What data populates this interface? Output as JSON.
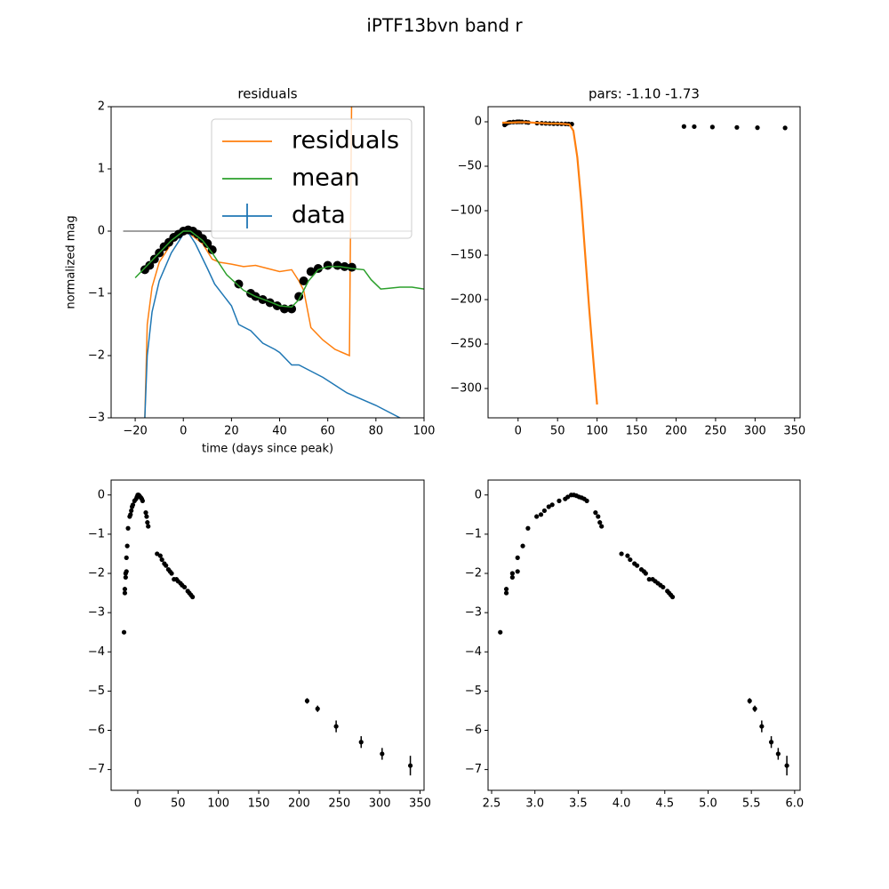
{
  "title": "iPTF13bvn band r",
  "chart_data": [
    {
      "type": "line",
      "title": "residuals",
      "x_label": "time (days since peak)",
      "y_label": "normalized mag",
      "xlim": [
        -30,
        100
      ],
      "ylim": [
        -3,
        2
      ],
      "xticks": [
        {
          "value": -20,
          "label": "−20"
        },
        0,
        20,
        40,
        60,
        80,
        100
      ],
      "yticks": [
        {
          "value": -3,
          "label": "−3"
        },
        {
          "value": -2,
          "label": "−2"
        },
        {
          "value": -1,
          "label": "−1"
        },
        0,
        1,
        2
      ],
      "legend": "upper right",
      "series": [
        {
          "style": "line",
          "color": "#808080",
          "x": [
            -25,
            95
          ],
          "values": [
            0,
            0
          ]
        },
        {
          "name": "residuals",
          "style": "line",
          "color": "#ff7f0e",
          "x": [
            -16,
            -15,
            -13,
            -10,
            -5,
            0,
            3,
            8,
            12,
            15,
            20,
            25,
            30,
            35,
            40,
            45,
            48,
            50,
            53,
            58,
            63,
            66,
            69,
            70
          ],
          "values": [
            -3.0,
            -1.5,
            -0.9,
            -0.5,
            -0.2,
            0,
            -0.05,
            -0.2,
            -0.45,
            -0.5,
            -0.53,
            -0.57,
            -0.55,
            -0.6,
            -0.65,
            -0.62,
            -0.8,
            -0.95,
            -1.55,
            -1.75,
            -1.9,
            -1.95,
            -2.0,
            2.5
          ]
        },
        {
          "name": "data",
          "style": "errorbar",
          "color": "#1f77b4",
          "x": [
            -16,
            -15,
            -13,
            -10,
            -5,
            0,
            2,
            5,
            10,
            13,
            20,
            23,
            28,
            33,
            38,
            40,
            45,
            48,
            53,
            58,
            64,
            68,
            80,
            90,
            100
          ],
          "values": [
            -3.0,
            -2.0,
            -1.3,
            -0.8,
            -0.35,
            -0.05,
            -0.02,
            -0.2,
            -0.6,
            -0.85,
            -1.2,
            -1.5,
            -1.6,
            -1.8,
            -1.9,
            -1.95,
            -2.15,
            -2.15,
            -2.25,
            -2.35,
            -2.5,
            -2.6,
            -2.8,
            -3.0,
            -3.2
          ]
        },
        {
          "style": "markers",
          "marker": "large",
          "color": "#000000",
          "x": [
            -16,
            -14,
            -12,
            -10,
            -8,
            -6,
            -4,
            -2,
            0,
            2,
            4,
            6,
            8,
            10,
            12,
            23,
            28,
            30,
            33,
            36,
            39,
            42,
            45,
            48,
            50,
            53,
            56,
            60,
            64,
            67,
            70
          ],
          "values": [
            -0.62,
            -0.55,
            -0.45,
            -0.35,
            -0.25,
            -0.18,
            -0.1,
            -0.05,
            0,
            0.02,
            0,
            -0.05,
            -0.12,
            -0.2,
            -0.3,
            -0.85,
            -1.0,
            -1.05,
            -1.1,
            -1.15,
            -1.2,
            -1.25,
            -1.25,
            -1.05,
            -0.8,
            -0.65,
            -0.6,
            -0.55,
            -0.55,
            -0.57,
            -0.58
          ]
        },
        {
          "name": "mean",
          "style": "line",
          "color": "#2ca02c",
          "x": [
            -20,
            -15,
            -10,
            -5,
            0,
            3,
            8,
            12,
            18,
            25,
            30,
            35,
            40,
            45,
            48,
            52,
            56,
            60,
            65,
            70,
            75,
            78,
            82,
            85,
            90,
            95,
            100
          ],
          "values": [
            -0.75,
            -0.55,
            -0.35,
            -0.15,
            0,
            0,
            -0.15,
            -0.35,
            -0.7,
            -0.95,
            -1.05,
            -1.12,
            -1.2,
            -1.22,
            -1.1,
            -0.8,
            -0.62,
            -0.57,
            -0.57,
            -0.6,
            -0.62,
            -0.78,
            -0.93,
            -0.92,
            -0.9,
            -0.9,
            -0.93
          ]
        }
      ]
    },
    {
      "type": "line",
      "title": "pars: -1.10 -1.73",
      "xlim": [
        -38,
        357
      ],
      "ylim": [
        -333,
        17
      ],
      "xticks": [
        0,
        50,
        100,
        150,
        200,
        250,
        300,
        350
      ],
      "yticks": [
        {
          "value": -300,
          "label": "−300"
        },
        {
          "value": -250,
          "label": "−250"
        },
        {
          "value": -200,
          "label": "−200"
        },
        {
          "value": -150,
          "label": "−150"
        },
        {
          "value": -100,
          "label": "−100"
        },
        {
          "value": -50,
          "label": "−50"
        },
        0
      ],
      "series": [
        {
          "style": "markers",
          "marker": "small",
          "color": "#000000",
          "x": [
            -17,
            -15,
            -12,
            -10,
            -6,
            -2,
            0,
            2,
            5,
            10,
            13,
            24,
            30,
            35,
            40,
            45,
            50,
            55,
            60,
            64,
            68,
            210,
            223,
            246,
            277,
            303,
            338
          ],
          "values": [
            -3.5,
            -2.1,
            -0.85,
            -0.55,
            -0.25,
            -0.1,
            0,
            -0.02,
            -0.1,
            -0.45,
            -0.8,
            -1.5,
            -1.65,
            -1.8,
            -1.95,
            -2.15,
            -2.2,
            -2.3,
            -2.4,
            -2.5,
            -2.6,
            -5.25,
            -5.45,
            -5.9,
            -6.3,
            -6.6,
            -6.9
          ]
        },
        {
          "style": "thick-line",
          "color": "#ff7f0e",
          "x": [
            -20,
            -10,
            0,
            10,
            20,
            30,
            40,
            50,
            60,
            65,
            70,
            75,
            80,
            85,
            90,
            95,
            100
          ],
          "values": [
            -1,
            -1,
            -0.5,
            -0.5,
            -1,
            -1.5,
            -2,
            -2,
            -2.5,
            -3,
            -10,
            -40,
            -90,
            -150,
            -210,
            -265,
            -318
          ]
        }
      ]
    },
    {
      "type": "scatter",
      "xlim": [
        -33,
        355
      ],
      "ylim": [
        -7.53,
        0.38
      ],
      "xticks": [
        0,
        50,
        100,
        150,
        200,
        250,
        300,
        350
      ],
      "yticks": [
        {
          "value": -7,
          "label": "−7"
        },
        {
          "value": -6,
          "label": "−6"
        },
        {
          "value": -5,
          "label": "−5"
        },
        {
          "value": -4,
          "label": "−4"
        },
        {
          "value": -3,
          "label": "−3"
        },
        {
          "value": -2,
          "label": "−2"
        },
        {
          "value": -1,
          "label": "−1"
        },
        0
      ],
      "series": [
        {
          "style": "errorbar-points",
          "marker": "small",
          "color": "#000000",
          "x": [
            -17,
            -16,
            -16,
            -15,
            -15,
            -14,
            -14,
            -13,
            -12,
            -10,
            -9,
            -8,
            -7,
            -6,
            -4,
            -2,
            -1,
            0,
            1,
            2,
            3,
            4,
            5,
            6,
            10,
            11,
            12,
            13,
            24,
            28,
            30,
            33,
            35,
            38,
            40,
            42,
            45,
            48,
            50,
            53,
            55,
            58,
            62,
            64,
            66,
            68,
            210,
            223,
            246,
            277,
            303,
            338
          ],
          "values": [
            -3.5,
            -2.5,
            -2.4,
            -2.1,
            -2.0,
            -1.95,
            -1.6,
            -1.3,
            -0.85,
            -0.55,
            -0.5,
            -0.4,
            -0.3,
            -0.25,
            -0.15,
            -0.1,
            -0.05,
            0,
            0,
            -0.02,
            -0.05,
            -0.07,
            -0.1,
            -0.15,
            -0.45,
            -0.55,
            -0.7,
            -0.8,
            -1.5,
            -1.55,
            -1.65,
            -1.75,
            -1.8,
            -1.9,
            -1.95,
            -2.0,
            -2.15,
            -2.15,
            -2.2,
            -2.25,
            -2.3,
            -2.35,
            -2.45,
            -2.5,
            -2.55,
            -2.6,
            -5.25,
            -5.45,
            -5.9,
            -6.3,
            -6.6,
            -6.9
          ],
          "errors": [
            0.02,
            0.02,
            0.02,
            0.02,
            0.02,
            0.02,
            0.02,
            0.02,
            0.02,
            0.02,
            0.02,
            0.02,
            0.02,
            0.02,
            0.02,
            0.02,
            0.02,
            0.02,
            0.02,
            0.02,
            0.02,
            0.02,
            0.02,
            0.02,
            0.02,
            0.02,
            0.02,
            0.02,
            0.02,
            0.02,
            0.02,
            0.02,
            0.02,
            0.02,
            0.02,
            0.02,
            0.02,
            0.02,
            0.02,
            0.02,
            0.02,
            0.02,
            0.02,
            0.02,
            0.02,
            0.02,
            0.07,
            0.08,
            0.15,
            0.15,
            0.15,
            0.25
          ]
        }
      ]
    },
    {
      "type": "scatter",
      "xlim": [
        2.459,
        6.063
      ],
      "ylim": [
        -7.53,
        0.38
      ],
      "xticks": [
        2.5,
        {
          "value": 3,
          "label": "3.0"
        },
        3.5,
        {
          "value": 4,
          "label": "4.0"
        },
        4.5,
        {
          "value": 5,
          "label": "5.0"
        },
        5.5,
        {
          "value": 6,
          "label": "6.0"
        }
      ],
      "yticks": [
        {
          "value": -7,
          "label": "−7"
        },
        {
          "value": -6,
          "label": "−6"
        },
        {
          "value": -5,
          "label": "−5"
        },
        {
          "value": -4,
          "label": "−4"
        },
        {
          "value": -3,
          "label": "−3"
        },
        {
          "value": -2,
          "label": "−2"
        },
        {
          "value": -1,
          "label": "−1"
        },
        0
      ],
      "series": [
        {
          "style": "errorbar-points",
          "marker": "small",
          "color": "#000000",
          "x": [
            2.6,
            2.67,
            2.67,
            2.74,
            2.74,
            2.8,
            2.8,
            2.86,
            2.92,
            3.02,
            3.07,
            3.11,
            3.16,
            3.2,
            3.28,
            3.35,
            3.38,
            3.42,
            3.45,
            3.48,
            3.51,
            3.54,
            3.57,
            3.6,
            3.7,
            3.73,
            3.75,
            3.77,
            4.0,
            4.07,
            4.1,
            4.15,
            4.18,
            4.23,
            4.26,
            4.28,
            4.32,
            4.36,
            4.39,
            4.42,
            4.45,
            4.48,
            4.53,
            4.55,
            4.57,
            4.59,
            5.48,
            5.54,
            5.62,
            5.73,
            5.81,
            5.91
          ],
          "values": [
            -3.5,
            -2.5,
            -2.4,
            -2.1,
            -2.0,
            -1.95,
            -1.6,
            -1.3,
            -0.85,
            -0.55,
            -0.5,
            -0.4,
            -0.3,
            -0.25,
            -0.15,
            -0.1,
            -0.05,
            0,
            0,
            -0.02,
            -0.05,
            -0.07,
            -0.1,
            -0.15,
            -0.45,
            -0.55,
            -0.7,
            -0.8,
            -1.5,
            -1.55,
            -1.65,
            -1.75,
            -1.8,
            -1.9,
            -1.95,
            -2.0,
            -2.15,
            -2.15,
            -2.2,
            -2.25,
            -2.3,
            -2.35,
            -2.45,
            -2.5,
            -2.55,
            -2.6,
            -5.25,
            -5.45,
            -5.9,
            -6.3,
            -6.6,
            -6.9
          ],
          "errors": [
            0.02,
            0.02,
            0.02,
            0.02,
            0.02,
            0.02,
            0.02,
            0.02,
            0.02,
            0.02,
            0.02,
            0.02,
            0.02,
            0.02,
            0.02,
            0.02,
            0.02,
            0.02,
            0.02,
            0.02,
            0.02,
            0.02,
            0.02,
            0.02,
            0.02,
            0.02,
            0.02,
            0.02,
            0.02,
            0.02,
            0.02,
            0.02,
            0.02,
            0.02,
            0.02,
            0.02,
            0.02,
            0.02,
            0.02,
            0.02,
            0.02,
            0.02,
            0.02,
            0.02,
            0.02,
            0.02,
            0.07,
            0.08,
            0.15,
            0.15,
            0.15,
            0.25
          ]
        }
      ]
    }
  ]
}
